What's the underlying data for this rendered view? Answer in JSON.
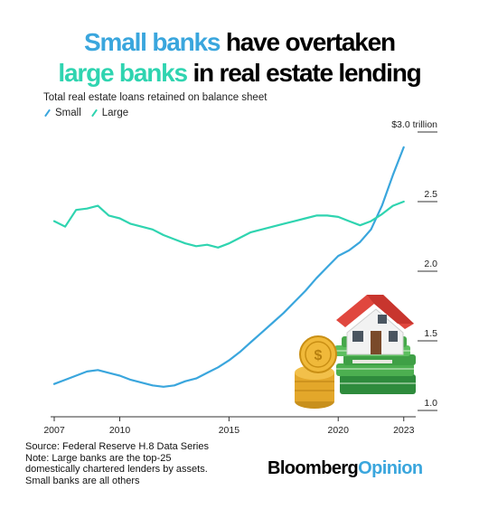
{
  "header": {
    "title_line1_highlight": "Small banks",
    "title_line1_rest": " have overtaken",
    "title_line2_highlight": "large banks",
    "title_line2_rest": " in real estate lending",
    "subtitle": "Total real estate loans retained on balance sheet"
  },
  "colors": {
    "small": "#3aa6dd",
    "large": "#2fd4b0",
    "axis": "#333333"
  },
  "chart_data": {
    "type": "line",
    "title": "Small banks have overtaken large banks in real estate lending",
    "subtitle": "Total real estate loans retained on balance sheet",
    "xlabel": "",
    "ylabel": "",
    "xlim": [
      2007,
      2023.3
    ],
    "ylim": [
      1.0,
      3.0
    ],
    "x_ticks": [
      2007,
      2010,
      2015,
      2020,
      2023
    ],
    "x_tick_labels": [
      "2007",
      "2010",
      "2015",
      "2020",
      "2023"
    ],
    "y_ticks": [
      1.0,
      1.5,
      2.0,
      2.5,
      3.0
    ],
    "y_tick_labels": [
      "1.0",
      "1.5",
      "2.0",
      "2.5",
      "$3.0 trillion"
    ],
    "grid": false,
    "legend_placement": "top-left",
    "series": [
      {
        "name": "Small",
        "x": [
          2007.0,
          2007.5,
          2008.0,
          2008.5,
          2009.0,
          2009.5,
          2010.0,
          2010.5,
          2011.0,
          2011.5,
          2012.0,
          2012.5,
          2013.0,
          2013.5,
          2014.0,
          2014.5,
          2015.0,
          2015.5,
          2016.0,
          2016.5,
          2017.0,
          2017.5,
          2018.0,
          2018.5,
          2019.0,
          2019.5,
          2020.0,
          2020.5,
          2021.0,
          2021.5,
          2022.0,
          2022.5,
          2023.0
        ],
        "values": [
          1.19,
          1.22,
          1.25,
          1.28,
          1.29,
          1.27,
          1.25,
          1.22,
          1.2,
          1.18,
          1.17,
          1.18,
          1.21,
          1.23,
          1.27,
          1.31,
          1.36,
          1.42,
          1.49,
          1.56,
          1.63,
          1.7,
          1.78,
          1.86,
          1.95,
          2.03,
          2.11,
          2.15,
          2.21,
          2.3,
          2.47,
          2.69,
          2.89
        ]
      },
      {
        "name": "Large",
        "x": [
          2007.0,
          2007.5,
          2008.0,
          2008.5,
          2009.0,
          2009.5,
          2010.0,
          2010.5,
          2011.0,
          2011.5,
          2012.0,
          2012.5,
          2013.0,
          2013.5,
          2014.0,
          2014.5,
          2015.0,
          2015.5,
          2016.0,
          2016.5,
          2017.0,
          2017.5,
          2018.0,
          2018.5,
          2019.0,
          2019.5,
          2020.0,
          2020.5,
          2021.0,
          2021.5,
          2022.0,
          2022.5,
          2023.0
        ],
        "values": [
          2.36,
          2.32,
          2.44,
          2.45,
          2.47,
          2.4,
          2.38,
          2.34,
          2.32,
          2.3,
          2.26,
          2.23,
          2.2,
          2.18,
          2.19,
          2.17,
          2.2,
          2.24,
          2.28,
          2.3,
          2.32,
          2.34,
          2.36,
          2.38,
          2.4,
          2.4,
          2.39,
          2.36,
          2.33,
          2.36,
          2.41,
          2.47,
          2.5
        ]
      }
    ]
  },
  "footnote": {
    "source": "Source: Federal Reserve H.8 Data Series",
    "note_line1": "Note: Large banks are the top-25",
    "note_line2": "domestically chartered lenders by assets.",
    "note_line3": "Small banks are all others"
  },
  "brand": {
    "name": "Bloomberg",
    "suffix": "Opinion"
  },
  "illustration": {
    "icon": "house-on-money-and-coins-icon"
  }
}
